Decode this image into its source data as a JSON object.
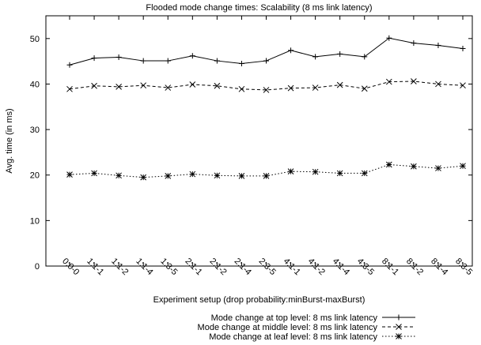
{
  "chart_data": {
    "type": "line",
    "title": "Flooded mode change times: Scalability (8 ms link latency)",
    "xlabel": "Experiment setup (drop probability:minBurst-maxBurst)",
    "ylabel": "Avg. time (in ms)",
    "ylim": [
      0,
      55
    ],
    "yticks": [
      0,
      10,
      20,
      30,
      40,
      50
    ],
    "categories": [
      "0:0-0",
      "1:1-1",
      "1:1-2",
      "1:1-4",
      "1:3-5",
      "2:1-1",
      "2:1-2",
      "2:1-4",
      "2:3-5",
      "4:1-1",
      "4:1-2",
      "4:1-4",
      "4:3-5",
      "8:1-1",
      "8:1-2",
      "8:1-4",
      "8:3-5"
    ],
    "grid": false,
    "legend_position": "bottom-right",
    "series": [
      {
        "name": "Mode change at top level: 8 ms link latency",
        "marker": "plus",
        "dash": "solid",
        "values": [
          44.2,
          45.7,
          45.9,
          45.1,
          45.1,
          46.2,
          45.1,
          44.5,
          45.1,
          47.4,
          46.0,
          46.6,
          46.0,
          50.1,
          49.0,
          48.5,
          47.8
        ]
      },
      {
        "name": "Mode change at middle level: 8 ms link latency",
        "marker": "cross",
        "dash": "dashed",
        "values": [
          38.9,
          39.6,
          39.4,
          39.7,
          39.2,
          39.9,
          39.6,
          38.9,
          38.7,
          39.1,
          39.2,
          39.8,
          39.0,
          40.5,
          40.6,
          40.0,
          39.7
        ]
      },
      {
        "name": "Mode change at leaf level: 8 ms link latency",
        "marker": "star",
        "dash": "dotted",
        "values": [
          20.1,
          20.4,
          19.9,
          19.5,
          19.8,
          20.2,
          19.9,
          19.8,
          19.8,
          20.8,
          20.7,
          20.4,
          20.4,
          22.3,
          21.9,
          21.5,
          22.0
        ]
      }
    ]
  }
}
